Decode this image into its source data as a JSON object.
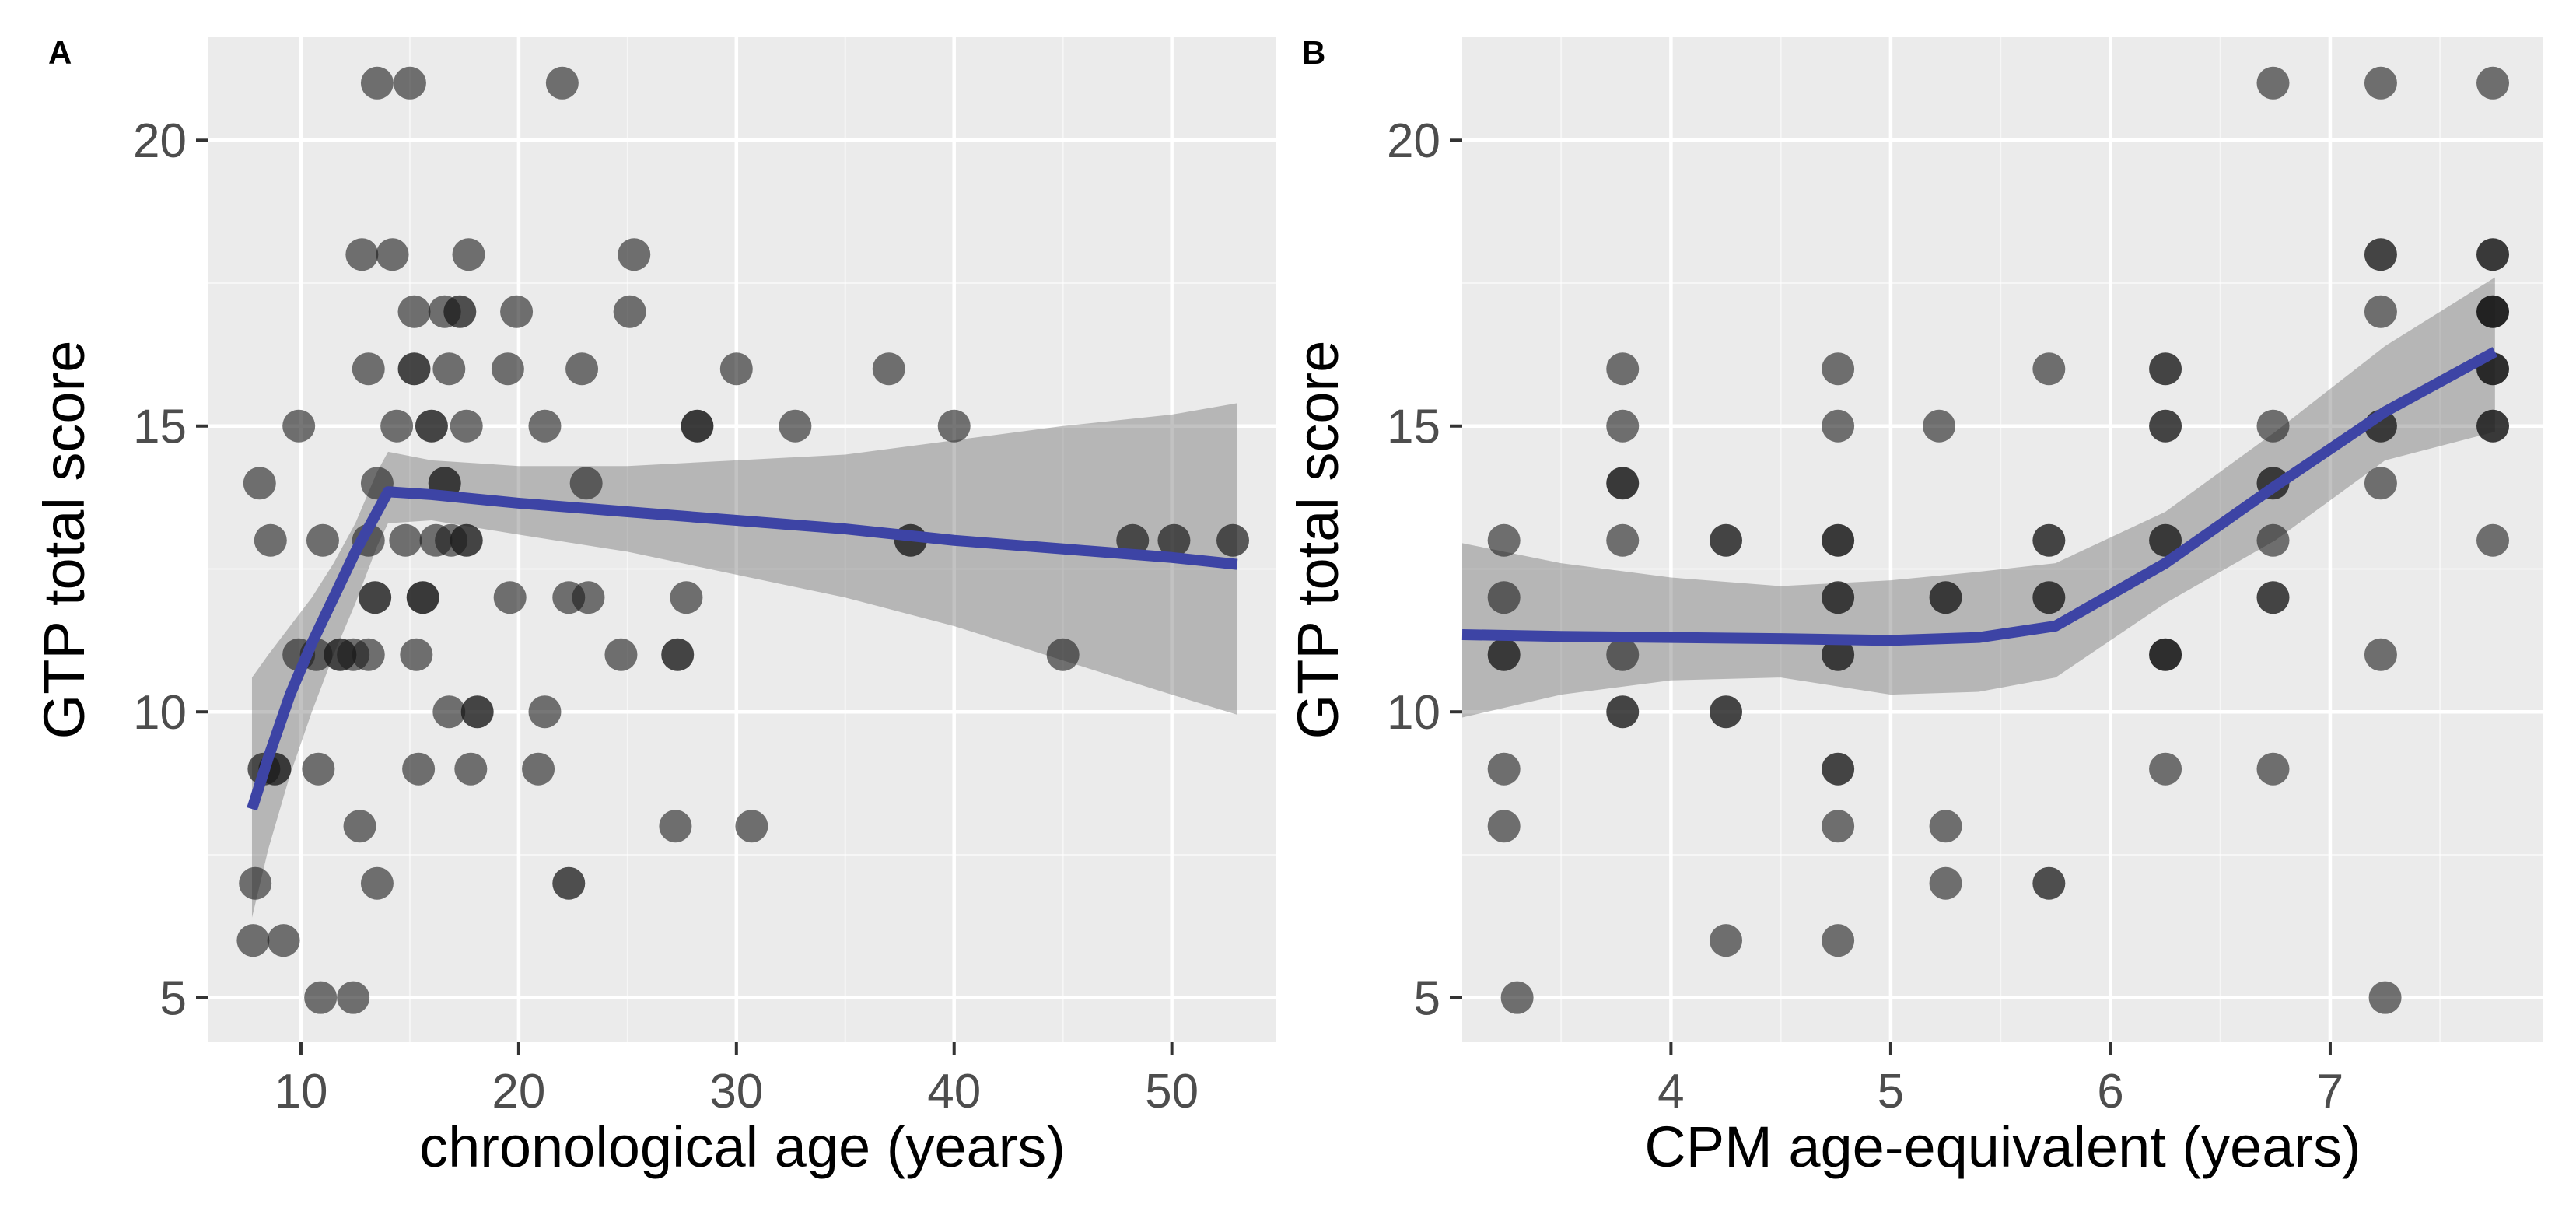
{
  "figure_title": "",
  "colors": {
    "background": "#ffffff",
    "panel_background": "#ebebeb",
    "grid_major": "#ffffff",
    "grid_minor": "#f5f5f5",
    "point_fill": "#1a1a1a",
    "smooth_line": "#3d44a5",
    "ci_band": "#6e6e6e",
    "tick_label": "#4d4d4d",
    "axis_title": "#000000",
    "tick_mark": "#333333"
  },
  "chart_data": [
    {
      "type": "scatter",
      "panel_tag": "A",
      "xlabel": "chronological age (years)",
      "ylabel": "GTP total score",
      "x_ticks": [
        10,
        20,
        30,
        40,
        50
      ],
      "x_minor_ticks": [
        15,
        25,
        35,
        45
      ],
      "y_ticks": [
        5,
        10,
        15,
        20
      ],
      "y_minor_ticks": [
        7.5,
        12.5,
        17.5
      ],
      "xlim": [
        5.75,
        54.8
      ],
      "ylim": [
        4.22,
        21.8
      ],
      "grid": true,
      "legend": "none",
      "points": [
        [
          13.5,
          21
        ],
        [
          15,
          21
        ],
        [
          22,
          21
        ],
        [
          12.8,
          18
        ],
        [
          14.2,
          18
        ],
        [
          17.7,
          18
        ],
        [
          25.3,
          18
        ],
        [
          15.2,
          17
        ],
        [
          16.6,
          17
        ],
        [
          17.3,
          17,
          0.75
        ],
        [
          19.9,
          17
        ],
        [
          25.1,
          17
        ],
        [
          13.1,
          16
        ],
        [
          15.2,
          16,
          0.8
        ],
        [
          16.8,
          16
        ],
        [
          19.5,
          16
        ],
        [
          22.9,
          16
        ],
        [
          30,
          16
        ],
        [
          37,
          16
        ],
        [
          9.9,
          15
        ],
        [
          14.4,
          15
        ],
        [
          16,
          15,
          0.8
        ],
        [
          17.6,
          15
        ],
        [
          21.2,
          15
        ],
        [
          28.2,
          15,
          0.85
        ],
        [
          32.7,
          15
        ],
        [
          40,
          15
        ],
        [
          8.1,
          14
        ],
        [
          13.5,
          14
        ],
        [
          16.6,
          14,
          0.8
        ],
        [
          23.1,
          14
        ],
        [
          8.6,
          13
        ],
        [
          11,
          13
        ],
        [
          13.1,
          13
        ],
        [
          14.8,
          13
        ],
        [
          16.2,
          13
        ],
        [
          16.9,
          13
        ],
        [
          17.6,
          13,
          0.8
        ],
        [
          38,
          13,
          0.8
        ],
        [
          48.2,
          13,
          0.7
        ],
        [
          50.1,
          13,
          0.7
        ],
        [
          52.8,
          13,
          0.7
        ],
        [
          13.4,
          12,
          0.8
        ],
        [
          15.6,
          12,
          0.85
        ],
        [
          19.6,
          12
        ],
        [
          22.3,
          12
        ],
        [
          23.2,
          12
        ],
        [
          27.7,
          12
        ],
        [
          9.9,
          11
        ],
        [
          10.7,
          11
        ],
        [
          11.8,
          11,
          0.8
        ],
        [
          12.4,
          11
        ],
        [
          13.1,
          11
        ],
        [
          15.3,
          11
        ],
        [
          24.7,
          11
        ],
        [
          27.3,
          11,
          0.8
        ],
        [
          45,
          11
        ],
        [
          16.8,
          10
        ],
        [
          18.1,
          10,
          0.8
        ],
        [
          21.2,
          10
        ],
        [
          8.3,
          9,
          0.7
        ],
        [
          8.8,
          9,
          0.8
        ],
        [
          10.8,
          9
        ],
        [
          15.4,
          9
        ],
        [
          17.8,
          9
        ],
        [
          20.9,
          9
        ],
        [
          12.7,
          8
        ],
        [
          27.2,
          8
        ],
        [
          30.7,
          8
        ],
        [
          7.9,
          7
        ],
        [
          13.5,
          7
        ],
        [
          22.3,
          7,
          0.75
        ],
        [
          7.8,
          6
        ],
        [
          9.2,
          6
        ],
        [
          10.9,
          5
        ],
        [
          12.4,
          5
        ]
      ],
      "smooth_line": [
        [
          7.75,
          8.3
        ],
        [
          8.5,
          9.2
        ],
        [
          9.5,
          10.3
        ],
        [
          10.5,
          11.2
        ],
        [
          11.5,
          12.0
        ],
        [
          12.5,
          12.8
        ],
        [
          13.5,
          13.5
        ],
        [
          14,
          13.85
        ],
        [
          16,
          13.8
        ],
        [
          20,
          13.65
        ],
        [
          25,
          13.5
        ],
        [
          30,
          13.35
        ],
        [
          35,
          13.2
        ],
        [
          40,
          13.0
        ],
        [
          45,
          12.85
        ],
        [
          50,
          12.7
        ],
        [
          53,
          12.58
        ]
      ],
      "ci_band": [
        [
          7.75,
          6.4,
          10.6
        ],
        [
          8.5,
          7.6,
          11.0
        ],
        [
          9.5,
          8.9,
          11.5
        ],
        [
          10.5,
          10.0,
          12.0
        ],
        [
          11.5,
          11.0,
          12.6
        ],
        [
          12.5,
          11.9,
          13.3
        ],
        [
          13.5,
          12.9,
          14.2
        ],
        [
          14,
          13.3,
          14.55
        ],
        [
          16,
          13.35,
          14.4
        ],
        [
          20,
          13.1,
          14.3
        ],
        [
          25,
          12.8,
          14.3
        ],
        [
          30,
          12.4,
          14.4
        ],
        [
          35,
          12.0,
          14.5
        ],
        [
          40,
          11.5,
          14.75
        ],
        [
          45,
          10.9,
          15.0
        ],
        [
          50,
          10.3,
          15.2
        ],
        [
          53,
          9.95,
          15.4
        ]
      ]
    },
    {
      "type": "scatter",
      "panel_tag": "B",
      "xlabel": "CPM age-equivalent (years)",
      "ylabel": "GTP total score",
      "x_ticks": [
        4,
        5,
        6,
        7
      ],
      "x_minor_ticks": [
        3.5,
        4.5,
        5.5,
        6.5,
        7.5
      ],
      "y_ticks": [
        5,
        10,
        15,
        20
      ],
      "y_minor_ticks": [
        7.5,
        12.5,
        17.5
      ],
      "xlim": [
        3.05,
        7.97
      ],
      "ylim": [
        4.22,
        21.8
      ],
      "grid": true,
      "legend": "none",
      "points": [
        [
          6.74,
          21
        ],
        [
          7.23,
          21
        ],
        [
          7.74,
          21
        ],
        [
          7.23,
          18,
          0.8
        ],
        [
          7.74,
          18,
          0.85
        ],
        [
          7.23,
          17
        ],
        [
          7.74,
          17,
          0.95
        ],
        [
          3.78,
          16
        ],
        [
          4.76,
          16
        ],
        [
          5.72,
          16
        ],
        [
          6.25,
          16,
          0.8
        ],
        [
          7.74,
          16,
          0.9
        ],
        [
          3.78,
          15
        ],
        [
          4.76,
          15
        ],
        [
          5.22,
          15
        ],
        [
          6.25,
          15,
          0.8
        ],
        [
          6.74,
          15
        ],
        [
          7.23,
          15,
          0.8
        ],
        [
          7.74,
          15,
          0.85
        ],
        [
          3.78,
          14,
          0.85
        ],
        [
          6.74,
          14,
          0.8
        ],
        [
          7.23,
          14
        ],
        [
          3.24,
          13
        ],
        [
          3.78,
          13
        ],
        [
          4.25,
          13,
          0.8
        ],
        [
          4.76,
          13,
          0.85
        ],
        [
          5.72,
          13,
          0.8
        ],
        [
          6.25,
          13,
          0.8
        ],
        [
          6.74,
          13
        ],
        [
          7.74,
          13
        ],
        [
          3.24,
          12
        ],
        [
          4.76,
          12,
          0.8
        ],
        [
          5.25,
          12,
          0.8
        ],
        [
          5.72,
          12,
          0.8
        ],
        [
          6.74,
          12,
          0.8
        ],
        [
          3.24,
          11,
          0.8
        ],
        [
          3.78,
          11
        ],
        [
          4.76,
          11,
          0.8
        ],
        [
          6.25,
          11,
          0.9
        ],
        [
          7.23,
          11
        ],
        [
          3.78,
          10,
          0.8
        ],
        [
          4.25,
          10,
          0.8
        ],
        [
          3.24,
          9
        ],
        [
          4.76,
          9,
          0.8
        ],
        [
          6.25,
          9
        ],
        [
          6.74,
          9
        ],
        [
          3.24,
          8
        ],
        [
          4.76,
          8
        ],
        [
          5.25,
          8
        ],
        [
          5.25,
          7
        ],
        [
          5.72,
          7,
          0.75
        ],
        [
          4.25,
          6
        ],
        [
          4.76,
          6
        ],
        [
          3.3,
          5
        ],
        [
          7.25,
          5
        ]
      ],
      "smooth_line": [
        [
          3.05,
          11.35
        ],
        [
          3.5,
          11.32
        ],
        [
          4,
          11.3
        ],
        [
          4.5,
          11.28
        ],
        [
          5,
          11.25
        ],
        [
          5.4,
          11.3
        ],
        [
          5.75,
          11.5
        ],
        [
          6.25,
          12.6
        ],
        [
          6.75,
          13.95
        ],
        [
          7.25,
          15.25
        ],
        [
          7.75,
          16.3
        ]
      ],
      "ci_band": [
        [
          3.05,
          9.9,
          12.95
        ],
        [
          3.5,
          10.3,
          12.6
        ],
        [
          4,
          10.55,
          12.35
        ],
        [
          4.5,
          10.6,
          12.2
        ],
        [
          5,
          10.3,
          12.3
        ],
        [
          5.4,
          10.35,
          12.45
        ],
        [
          5.75,
          10.6,
          12.6
        ],
        [
          6.25,
          11.9,
          13.5
        ],
        [
          6.75,
          13.0,
          14.9
        ],
        [
          7.25,
          14.4,
          16.4
        ],
        [
          7.75,
          14.9,
          17.6
        ]
      ]
    }
  ]
}
